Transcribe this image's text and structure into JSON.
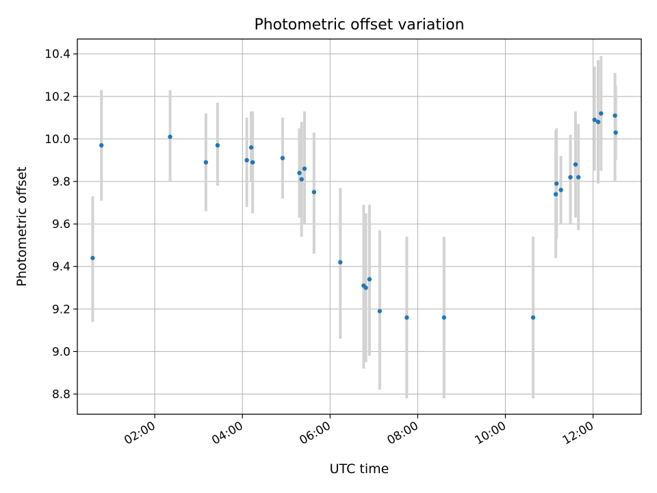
{
  "chart_data": {
    "type": "scatter",
    "title": "Photometric offset variation",
    "xlabel": "UTC time",
    "ylabel": "Photometric offset",
    "x_axis_kind": "time",
    "xlim": [
      "00:14",
      "13:06"
    ],
    "ylim": [
      8.705,
      10.47
    ],
    "x_ticks": [
      "02:00",
      "04:00",
      "06:00",
      "08:00",
      "10:00",
      "12:00"
    ],
    "y_ticks": [
      8.8,
      9.0,
      9.2,
      9.4,
      9.6,
      9.8,
      10.0,
      10.2,
      10.4
    ],
    "grid": true,
    "legend": "none",
    "colors": {
      "point": "#1f77b4",
      "errorbar": "#d3d3d3",
      "grid": "#b0b0b0",
      "axes": "#000000"
    },
    "points": [
      {
        "x": "00:35",
        "y": 9.44,
        "lo": 9.14,
        "hi": 9.73
      },
      {
        "x": "00:47",
        "y": 9.97,
        "lo": 9.71,
        "hi": 10.23
      },
      {
        "x": "02:21",
        "y": 10.01,
        "lo": 9.8,
        "hi": 10.23
      },
      {
        "x": "03:10",
        "y": 9.89,
        "lo": 9.66,
        "hi": 10.12
      },
      {
        "x": "03:26",
        "y": 9.97,
        "lo": 9.78,
        "hi": 10.17
      },
      {
        "x": "04:06",
        "y": 9.9,
        "lo": 9.68,
        "hi": 10.1
      },
      {
        "x": "04:12",
        "y": 9.96,
        "lo": 9.8,
        "hi": 10.13
      },
      {
        "x": "04:14",
        "y": 9.89,
        "lo": 9.65,
        "hi": 10.13
      },
      {
        "x": "04:55",
        "y": 9.91,
        "lo": 9.72,
        "hi": 10.1
      },
      {
        "x": "05:18",
        "y": 9.84,
        "lo": 9.63,
        "hi": 10.05
      },
      {
        "x": "05:21",
        "y": 9.81,
        "lo": 9.54,
        "hi": 10.08
      },
      {
        "x": "05:25",
        "y": 9.86,
        "lo": 9.6,
        "hi": 10.13
      },
      {
        "x": "05:38",
        "y": 9.75,
        "lo": 9.46,
        "hi": 10.03
      },
      {
        "x": "06:14",
        "y": 9.42,
        "lo": 9.06,
        "hi": 9.77
      },
      {
        "x": "06:46",
        "y": 9.31,
        "lo": 8.92,
        "hi": 9.69
      },
      {
        "x": "06:49",
        "y": 9.3,
        "lo": 8.95,
        "hi": 9.65
      },
      {
        "x": "06:54",
        "y": 9.34,
        "lo": 8.98,
        "hi": 9.69
      },
      {
        "x": "07:08",
        "y": 9.19,
        "lo": 8.82,
        "hi": 9.57
      },
      {
        "x": "07:45",
        "y": 9.16,
        "lo": 8.78,
        "hi": 9.54
      },
      {
        "x": "08:36",
        "y": 9.16,
        "lo": 8.78,
        "hi": 9.54
      },
      {
        "x": "10:38",
        "y": 9.16,
        "lo": 8.78,
        "hi": 9.54
      },
      {
        "x": "11:09",
        "y": 9.74,
        "lo": 9.44,
        "hi": 10.04
      },
      {
        "x": "11:10",
        "y": 9.79,
        "lo": 9.53,
        "hi": 10.05
      },
      {
        "x": "11:16",
        "y": 9.76,
        "lo": 9.6,
        "hi": 9.92
      },
      {
        "x": "11:29",
        "y": 9.82,
        "lo": 9.6,
        "hi": 10.02
      },
      {
        "x": "11:36",
        "y": 9.88,
        "lo": 9.63,
        "hi": 10.13
      },
      {
        "x": "11:40",
        "y": 9.82,
        "lo": 9.57,
        "hi": 10.07
      },
      {
        "x": "12:02",
        "y": 10.09,
        "lo": 9.85,
        "hi": 10.34
      },
      {
        "x": "12:07",
        "y": 10.08,
        "lo": 9.79,
        "hi": 10.37
      },
      {
        "x": "12:11",
        "y": 10.12,
        "lo": 9.85,
        "hi": 10.39
      },
      {
        "x": "12:30",
        "y": 10.11,
        "lo": 9.8,
        "hi": 10.31
      },
      {
        "x": "12:31",
        "y": 10.03,
        "lo": 9.9,
        "hi": 10.25
      }
    ]
  }
}
